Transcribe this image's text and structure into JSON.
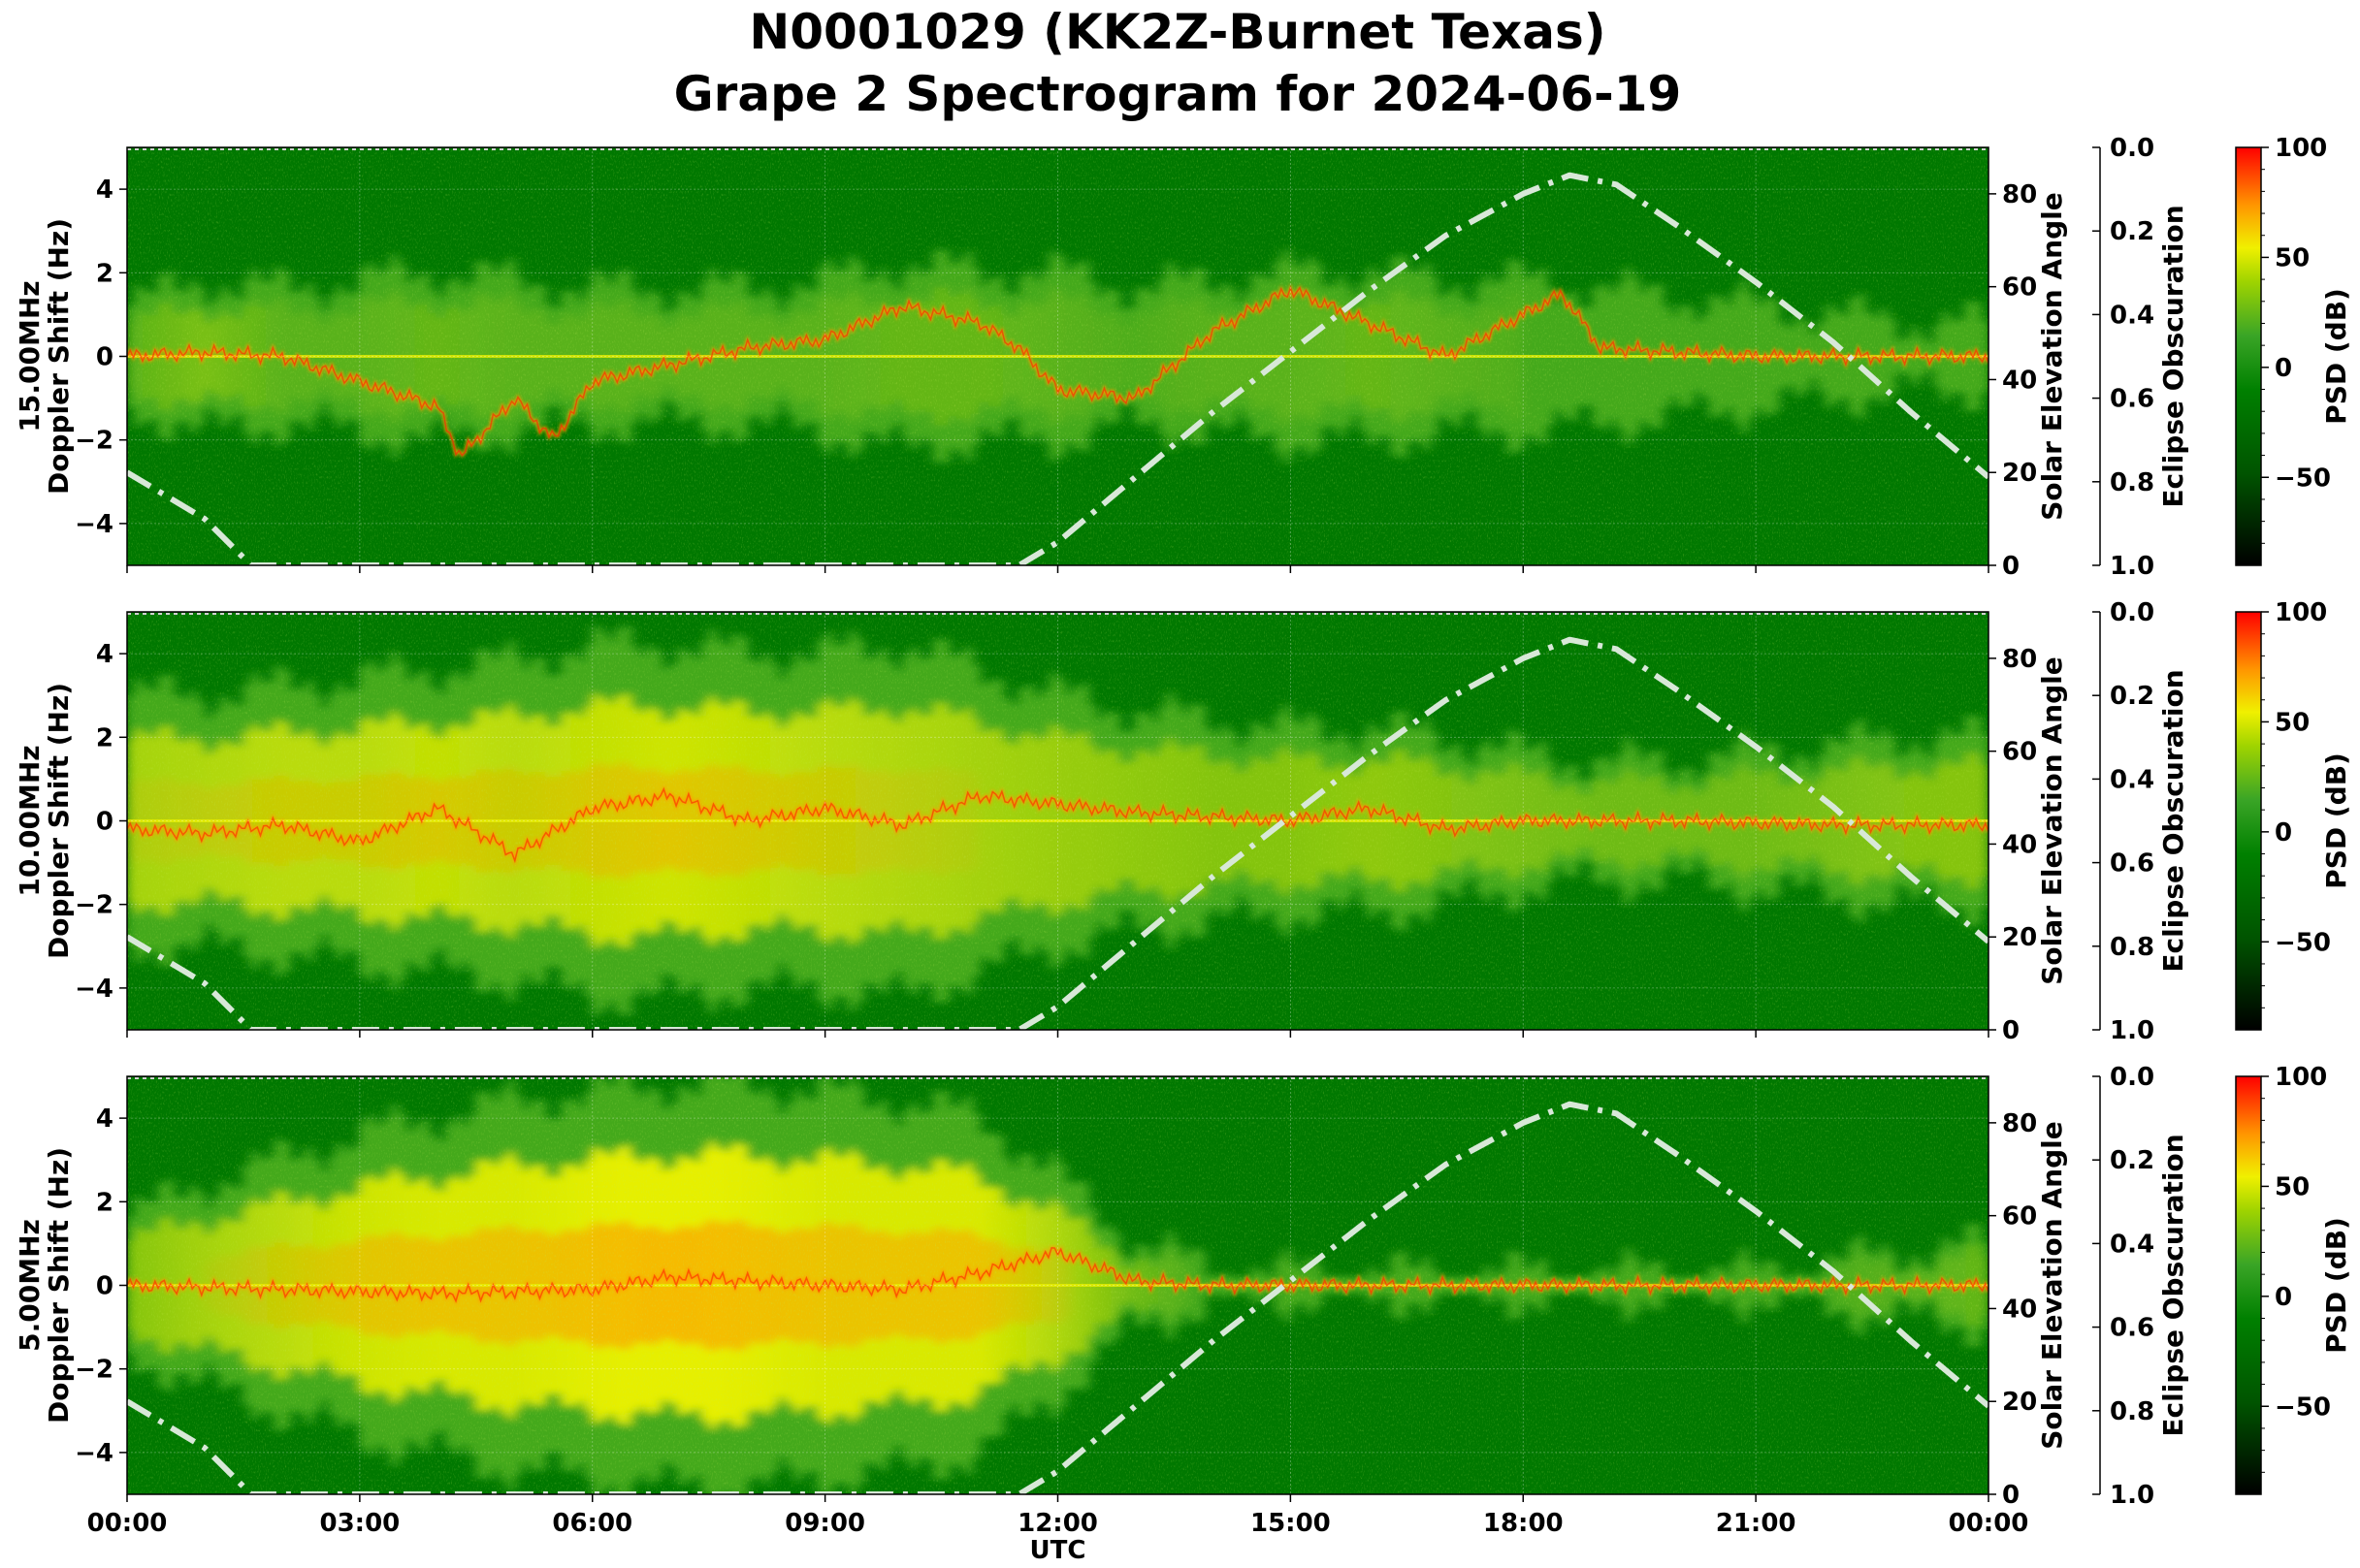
{
  "title_line1": "N0001029 (KK2Z-Burnet Texas)",
  "title_line2": "Grape 2 Spectrogram for 2024-06-19",
  "colors": {
    "green": "#007800",
    "light_green": "#4fb022",
    "yellow": "#e8f000",
    "orange": "#ff9a00",
    "red": "#ff1500",
    "elevation_line": "#d8e8d8"
  },
  "chart_data": [
    {
      "type": "heatmap",
      "panel_label": "15.00MHz",
      "ylabel": "Doppler Shift (Hz)",
      "y2label": "Solar Elevation Angle",
      "y3label": "Eclipse Obscuration",
      "cbar_label": "PSD (dB)",
      "xlabel": "",
      "xlim": [
        0,
        24
      ],
      "ylim": [
        -5,
        5
      ],
      "y2lim": [
        0,
        90
      ],
      "y3lim": [
        1.0,
        0.0
      ],
      "clim": [
        -90,
        100
      ],
      "x_ticks": [
        "00:00",
        "03:00",
        "06:00",
        "09:00",
        "12:00",
        "15:00",
        "18:00",
        "21:00",
        "00:00"
      ],
      "y_ticks": [
        "−4",
        "−2",
        "0",
        "2",
        "4"
      ],
      "y2_ticks": [
        "0",
        "20",
        "40",
        "60",
        "80"
      ],
      "y3_ticks": [
        "0.0",
        "0.2",
        "0.4",
        "0.6",
        "0.8",
        "1.0"
      ],
      "cbar_ticks": [
        "100",
        "50",
        "0",
        "−50"
      ],
      "activity": [
        [
          0,
          1.2,
          0.1
        ],
        [
          1,
          1.8,
          0.25
        ],
        [
          2,
          1.6,
          0.1
        ],
        [
          3,
          1.8,
          0.1
        ],
        [
          4,
          2.0,
          0.15
        ],
        [
          5,
          1.8,
          0.1
        ],
        [
          6,
          1.6,
          0.1
        ],
        [
          7,
          1.6,
          0.1
        ],
        [
          8,
          1.6,
          0.1
        ],
        [
          9,
          1.8,
          0.1
        ],
        [
          10,
          2.2,
          0.15
        ],
        [
          11,
          2.0,
          0.15
        ],
        [
          12,
          2.0,
          0.1
        ],
        [
          13,
          1.6,
          0.05
        ],
        [
          14,
          1.8,
          0.1
        ],
        [
          15,
          2.0,
          0.1
        ],
        [
          16,
          2.0,
          0.15
        ],
        [
          17,
          1.8,
          0.1
        ],
        [
          18,
          1.8,
          0.05
        ],
        [
          19,
          1.6,
          0.05
        ],
        [
          20,
          1.4,
          0.05
        ],
        [
          21,
          1.2,
          0.05
        ],
        [
          22,
          1.0,
          0.0
        ],
        [
          23,
          0.8,
          0.0
        ],
        [
          24,
          0.8,
          0.0
        ]
      ],
      "trace": [
        [
          0,
          0
        ],
        [
          1,
          0.1
        ],
        [
          2,
          0
        ],
        [
          3,
          -0.6
        ],
        [
          4,
          -1.2
        ],
        [
          4.3,
          -2.4
        ],
        [
          5,
          -1.0
        ],
        [
          5.5,
          -2.0
        ],
        [
          6,
          -0.6
        ],
        [
          7,
          -0.2
        ],
        [
          8,
          0.2
        ],
        [
          9,
          0.4
        ],
        [
          10,
          1.2
        ],
        [
          11,
          0.8
        ],
        [
          11.5,
          0.2
        ],
        [
          12,
          -0.8
        ],
        [
          13,
          -1.0
        ],
        [
          14,
          0.6
        ],
        [
          15,
          1.6
        ],
        [
          16,
          0.8
        ],
        [
          17,
          0.0
        ],
        [
          18.5,
          1.5
        ],
        [
          19,
          0.2
        ],
        [
          21,
          0
        ],
        [
          24,
          0
        ]
      ],
      "solar_elevation": [
        [
          0,
          20
        ],
        [
          1,
          10
        ],
        [
          1.6,
          0
        ],
        [
          11.5,
          0
        ],
        [
          12,
          5
        ],
        [
          13,
          19
        ],
        [
          14,
          33
        ],
        [
          15,
          46
        ],
        [
          16,
          59
        ],
        [
          17,
          71
        ],
        [
          18,
          80
        ],
        [
          18.6,
          84
        ],
        [
          19.2,
          82
        ],
        [
          20,
          73
        ],
        [
          21,
          61
        ],
        [
          22,
          48
        ],
        [
          23,
          33
        ],
        [
          24,
          19
        ]
      ]
    },
    {
      "type": "heatmap",
      "panel_label": "10.00MHz",
      "ylabel": "Doppler Shift (Hz)",
      "y2label": "Solar Elevation Angle",
      "y3label": "Eclipse Obscuration",
      "cbar_label": "PSD (dB)",
      "xlabel": "",
      "xlim": [
        0,
        24
      ],
      "ylim": [
        -5,
        5
      ],
      "y2lim": [
        0,
        90
      ],
      "y3lim": [
        1.0,
        0.0
      ],
      "clim": [
        -90,
        100
      ],
      "x_ticks": [
        "00:00",
        "03:00",
        "06:00",
        "09:00",
        "12:00",
        "15:00",
        "18:00",
        "21:00",
        "00:00"
      ],
      "y_ticks": [
        "−4",
        "−2",
        "0",
        "2",
        "4"
      ],
      "y2_ticks": [
        "0",
        "20",
        "40",
        "60",
        "80"
      ],
      "y3_ticks": [
        "0.0",
        "0.2",
        "0.4",
        "0.6",
        "0.8",
        "1.0"
      ],
      "cbar_ticks": [
        "100",
        "50",
        "0",
        "−50"
      ],
      "activity": [
        [
          0,
          3.0,
          0.45
        ],
        [
          1,
          3.0,
          0.5
        ],
        [
          2,
          3.2,
          0.55
        ],
        [
          3,
          3.4,
          0.55
        ],
        [
          4,
          3.6,
          0.6
        ],
        [
          5,
          3.8,
          0.55
        ],
        [
          6,
          4.2,
          0.6
        ],
        [
          7,
          4.2,
          0.65
        ],
        [
          8,
          4.0,
          0.6
        ],
        [
          9,
          4.0,
          0.55
        ],
        [
          10,
          4.2,
          0.5
        ],
        [
          11,
          3.6,
          0.45
        ],
        [
          12,
          3.0,
          0.4
        ],
        [
          13,
          2.6,
          0.35
        ],
        [
          14,
          2.4,
          0.3
        ],
        [
          15,
          2.2,
          0.3
        ],
        [
          16,
          2.2,
          0.35
        ],
        [
          17,
          2.0,
          0.3
        ],
        [
          18,
          1.6,
          0.25
        ],
        [
          19,
          1.4,
          0.2
        ],
        [
          20,
          1.4,
          0.2
        ],
        [
          21,
          1.6,
          0.2
        ],
        [
          22,
          1.8,
          0.25
        ],
        [
          23,
          2.0,
          0.3
        ],
        [
          24,
          2.0,
          0.3
        ]
      ],
      "trace": [
        [
          0,
          -0.2
        ],
        [
          1,
          -0.3
        ],
        [
          2,
          -0.1
        ],
        [
          3,
          -0.5
        ],
        [
          4,
          0.3
        ],
        [
          5,
          -0.8
        ],
        [
          6,
          0.3
        ],
        [
          7,
          0.6
        ],
        [
          8,
          0.0
        ],
        [
          9,
          0.3
        ],
        [
          10,
          -0.1
        ],
        [
          11,
          0.6
        ],
        [
          12,
          0.4
        ],
        [
          13,
          0.2
        ],
        [
          14,
          0.1
        ],
        [
          15,
          0.0
        ],
        [
          16,
          0.3
        ],
        [
          17,
          -0.2
        ],
        [
          18,
          0.0
        ],
        [
          20,
          0.0
        ],
        [
          22,
          -0.1
        ],
        [
          24,
          -0.1
        ]
      ],
      "solar_elevation": [
        [
          0,
          20
        ],
        [
          1,
          10
        ],
        [
          1.6,
          0
        ],
        [
          11.5,
          0
        ],
        [
          12,
          5
        ],
        [
          13,
          19
        ],
        [
          14,
          33
        ],
        [
          15,
          46
        ],
        [
          16,
          59
        ],
        [
          17,
          71
        ],
        [
          18,
          80
        ],
        [
          18.6,
          84
        ],
        [
          19.2,
          82
        ],
        [
          20,
          73
        ],
        [
          21,
          61
        ],
        [
          22,
          48
        ],
        [
          23,
          33
        ],
        [
          24,
          19
        ]
      ]
    },
    {
      "type": "heatmap",
      "panel_label": "5.00MHz",
      "ylabel": "Doppler Shift (Hz)",
      "y2label": "Solar Elevation Angle",
      "y3label": "Eclipse Obscuration",
      "cbar_label": "PSD (dB)",
      "xlabel": "UTC",
      "xlim": [
        0,
        24
      ],
      "ylim": [
        -5,
        5
      ],
      "y2lim": [
        0,
        90
      ],
      "y3lim": [
        1.0,
        0.0
      ],
      "clim": [
        -90,
        100
      ],
      "x_ticks": [
        "00:00",
        "03:00",
        "06:00",
        "09:00",
        "12:00",
        "15:00",
        "18:00",
        "21:00",
        "00:00"
      ],
      "y_ticks": [
        "−4",
        "−2",
        "0",
        "2",
        "4"
      ],
      "y2_ticks": [
        "0",
        "20",
        "40",
        "60",
        "80"
      ],
      "y3_ticks": [
        "0.0",
        "0.2",
        "0.4",
        "0.6",
        "0.8",
        "1.0"
      ],
      "cbar_ticks": [
        "100",
        "50",
        "0",
        "−50"
      ],
      "activity": [
        [
          0,
          1.6,
          0.3
        ],
        [
          1,
          2.4,
          0.45
        ],
        [
          2,
          3.0,
          0.55
        ],
        [
          3,
          3.6,
          0.65
        ],
        [
          4,
          4.0,
          0.7
        ],
        [
          5,
          4.4,
          0.7
        ],
        [
          6,
          4.6,
          0.75
        ],
        [
          7,
          4.8,
          0.8
        ],
        [
          8,
          4.8,
          0.75
        ],
        [
          9,
          4.6,
          0.7
        ],
        [
          10,
          4.4,
          0.7
        ],
        [
          11,
          4.0,
          0.7
        ],
        [
          12,
          2.6,
          0.5
        ],
        [
          13,
          1.0,
          0.2
        ],
        [
          14,
          0.4,
          0.0
        ],
        [
          15,
          0.3,
          0.0
        ],
        [
          18,
          0.3,
          0.0
        ],
        [
          21,
          0.3,
          0.0
        ],
        [
          23,
          0.8,
          0.1
        ],
        [
          24,
          1.0,
          0.15
        ]
      ],
      "trace": [
        [
          0,
          0
        ],
        [
          2,
          -0.1
        ],
        [
          4,
          -0.2
        ],
        [
          6,
          -0.1
        ],
        [
          7,
          0.2
        ],
        [
          8,
          0.1
        ],
        [
          9,
          0
        ],
        [
          10,
          -0.1
        ],
        [
          11,
          0.3
        ],
        [
          12,
          0.8
        ],
        [
          13,
          0.1
        ],
        [
          14,
          0
        ],
        [
          24,
          0
        ]
      ],
      "solar_elevation": [
        [
          0,
          20
        ],
        [
          1,
          10
        ],
        [
          1.6,
          0
        ],
        [
          11.5,
          0
        ],
        [
          12,
          5
        ],
        [
          13,
          19
        ],
        [
          14,
          33
        ],
        [
          15,
          46
        ],
        [
          16,
          59
        ],
        [
          17,
          71
        ],
        [
          18,
          80
        ],
        [
          18.6,
          84
        ],
        [
          19.2,
          82
        ],
        [
          20,
          73
        ],
        [
          21,
          61
        ],
        [
          22,
          48
        ],
        [
          23,
          33
        ],
        [
          24,
          19
        ]
      ]
    }
  ]
}
